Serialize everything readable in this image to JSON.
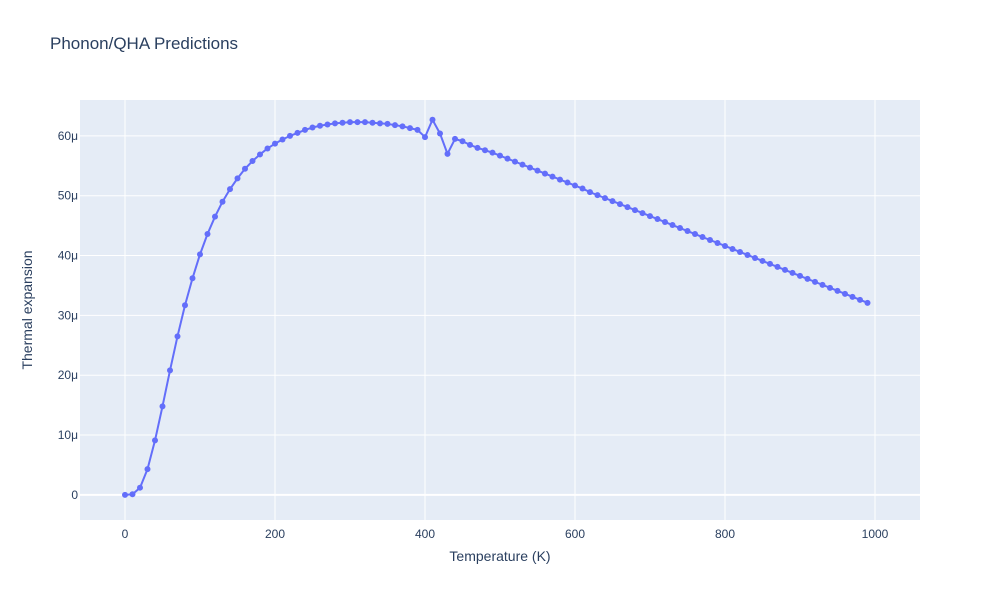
{
  "title": "Phonon/QHA Predictions",
  "chart_data": {
    "type": "line",
    "title": "Phonon/QHA Predictions",
    "xlabel": "Temperature (K)",
    "ylabel": "Thermal expansion",
    "xlim": [
      -60,
      1060
    ],
    "ylim": [
      -4.2e-06,
      6.6e-05
    ],
    "x_ticks": [
      {
        "value": 0,
        "label": "0"
      },
      {
        "value": 200,
        "label": "200"
      },
      {
        "value": 400,
        "label": "400"
      },
      {
        "value": 600,
        "label": "600"
      },
      {
        "value": 800,
        "label": "800"
      },
      {
        "value": 1000,
        "label": "1000"
      }
    ],
    "y_ticks": [
      {
        "value": 0,
        "label": "0"
      },
      {
        "value": 1e-05,
        "label": "10μ"
      },
      {
        "value": 2e-05,
        "label": "20μ"
      },
      {
        "value": 3e-05,
        "label": "30μ"
      },
      {
        "value": 4e-05,
        "label": "40μ"
      },
      {
        "value": 5e-05,
        "label": "50μ"
      },
      {
        "value": 6e-05,
        "label": "60μ"
      }
    ],
    "grid": true,
    "colors": {
      "line": "#636efa",
      "plot_bg": "#e5ecf6",
      "grid": "#ffffff",
      "text": "#2a3f5f"
    },
    "series": [
      {
        "x": [
          0,
          10,
          20,
          30,
          40,
          50,
          60,
          70,
          80,
          90,
          100,
          110,
          120,
          130,
          140,
          150,
          160,
          170,
          180,
          190,
          200,
          210,
          220,
          230,
          240,
          250,
          260,
          270,
          280,
          290,
          300,
          310,
          320,
          330,
          340,
          350,
          360,
          370,
          380,
          390,
          400,
          410,
          420,
          430,
          440,
          450,
          460,
          470,
          480,
          490,
          500,
          510,
          520,
          530,
          540,
          550,
          560,
          570,
          580,
          590,
          600,
          610,
          620,
          630,
          640,
          650,
          660,
          670,
          680,
          690,
          700,
          710,
          720,
          730,
          740,
          750,
          760,
          770,
          780,
          790,
          800,
          810,
          820,
          830,
          840,
          850,
          860,
          870,
          880,
          890,
          900,
          910,
          920,
          930,
          940,
          950,
          960,
          970,
          980,
          990
        ],
        "y": [
          0,
          1e-07,
          1.2e-06,
          4.3e-06,
          9.1e-06,
          1.48e-05,
          2.08e-05,
          2.65e-05,
          3.17e-05,
          3.62e-05,
          4.02e-05,
          4.36e-05,
          4.65e-05,
          4.9e-05,
          5.11e-05,
          5.29e-05,
          5.45e-05,
          5.58e-05,
          5.69e-05,
          5.79e-05,
          5.87e-05,
          5.94e-05,
          6e-05,
          6.05e-05,
          6.1e-05,
          6.14e-05,
          6.17e-05,
          6.19e-05,
          6.21e-05,
          6.22e-05,
          6.23e-05,
          6.23e-05,
          6.23e-05,
          6.22e-05,
          6.21e-05,
          6.2e-05,
          6.18e-05,
          6.16e-05,
          6.13e-05,
          6.1e-05,
          5.98e-05,
          6.27e-05,
          6.04e-05,
          5.7e-05,
          5.95e-05,
          5.91e-05,
          5.85e-05,
          5.8e-05,
          5.76e-05,
          5.72e-05,
          5.67e-05,
          5.62e-05,
          5.57e-05,
          5.52e-05,
          5.47e-05,
          5.42e-05,
          5.37e-05,
          5.32e-05,
          5.27e-05,
          5.22e-05,
          5.17e-05,
          5.12e-05,
          5.06e-05,
          5.01e-05,
          4.96e-05,
          4.91e-05,
          4.86e-05,
          4.81e-05,
          4.76e-05,
          4.71e-05,
          4.66e-05,
          4.61e-05,
          4.56e-05,
          4.51e-05,
          4.46e-05,
          4.41e-05,
          4.36e-05,
          4.31e-05,
          4.26e-05,
          4.21e-05,
          4.16e-05,
          4.11e-05,
          4.06e-05,
          4.01e-05,
          3.96e-05,
          3.91e-05,
          3.86e-05,
          3.81e-05,
          3.76e-05,
          3.71e-05,
          3.66e-05,
          3.61e-05,
          3.56e-05,
          3.51e-05,
          3.46e-05,
          3.41e-05,
          3.36e-05,
          3.31e-05,
          3.26e-05,
          3.21e-05
        ]
      }
    ]
  }
}
